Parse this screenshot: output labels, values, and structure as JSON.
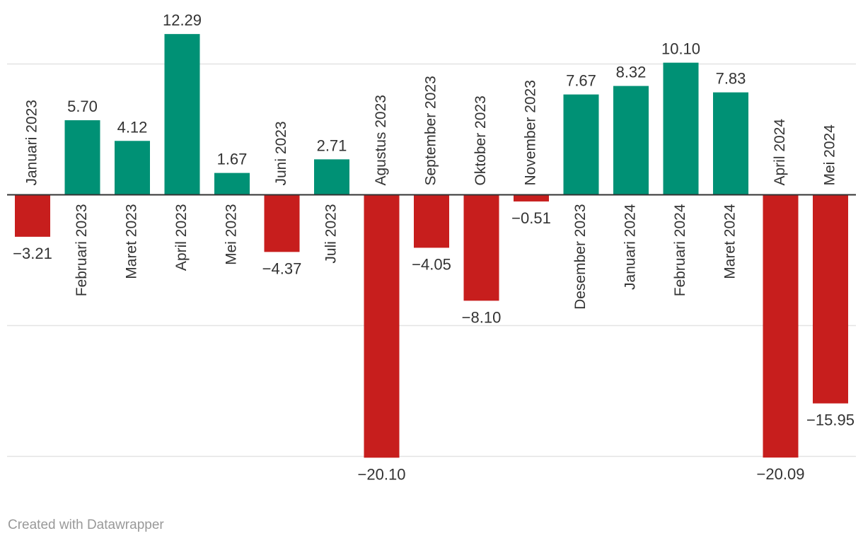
{
  "chart_data": {
    "type": "bar",
    "categories": [
      "Januari 2023",
      "Februari 2023",
      "Maret 2023",
      "April 2023",
      "Mei 2023",
      "Juni 2023",
      "Juli 2023",
      "Agustus 2023",
      "September 2023",
      "Oktober 2023",
      "November 2023",
      "Desember 2023",
      "Januari 2024",
      "Februari 2024",
      "Maret 2024",
      "April 2024",
      "Mei 2024"
    ],
    "values": [
      -3.21,
      5.7,
      4.12,
      12.29,
      1.67,
      -4.37,
      2.71,
      -20.1,
      -4.05,
      -8.1,
      -0.51,
      7.67,
      8.32,
      10.1,
      7.83,
      -20.09,
      -15.95
    ],
    "value_labels": [
      "−3.21",
      "5.70",
      "4.12",
      "12.29",
      "1.67",
      "−4.37",
      "2.71",
      "−20.10",
      "−4.05",
      "−8.10",
      "−0.51",
      "7.67",
      "8.32",
      "10.10",
      "7.83",
      "−20.09",
      "−15.95"
    ],
    "ylim": [
      -20,
      10
    ],
    "gridlines": [
      10,
      -10,
      -20
    ],
    "grid": true,
    "legend": "none",
    "colors": {
      "positive": "#009175",
      "negative": "#c71e1d",
      "grid": "#e3e3e3",
      "zero_line": "#333333",
      "text": "#333333"
    },
    "title": "",
    "xlabel": "",
    "ylabel": ""
  },
  "footer": {
    "credit": "Created with Datawrapper"
  }
}
